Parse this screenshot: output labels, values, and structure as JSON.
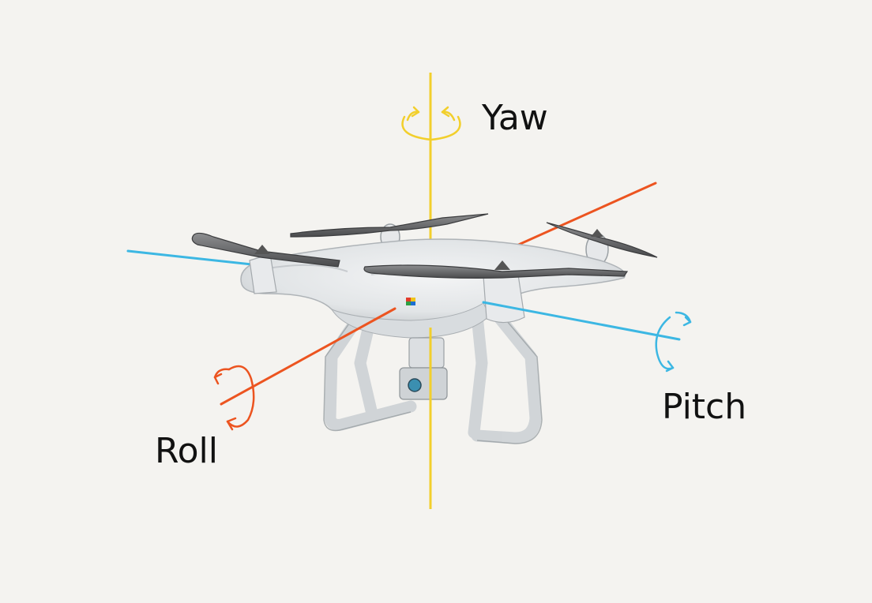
{
  "labels": {
    "yaw": "Yaw",
    "pitch": "Pitch",
    "roll": "Roll"
  },
  "colors": {
    "background": "#f4f3f0",
    "yaw_axis": "#f2cf2c",
    "pitch_axis": "#3cb7e3",
    "roll_axis": "#ec5420",
    "label_text": "#111111"
  },
  "icons": {
    "drone": "quadcopter-drone-icon",
    "yaw_rotation": "rotation-arrow-icon",
    "pitch_rotation": "rotation-arrow-icon",
    "roll_rotation": "rotation-arrow-icon"
  }
}
